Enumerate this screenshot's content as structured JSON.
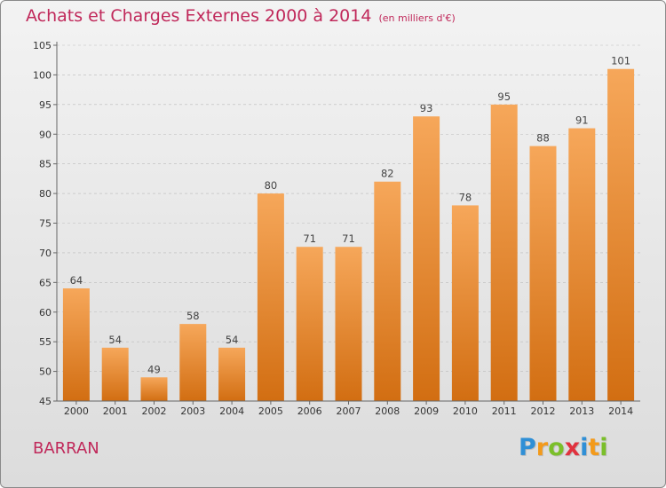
{
  "title": "Achats et Charges Externes 2000 à 2014",
  "subtitle": "(en milliers d'€)",
  "place": "BARRAN",
  "logo": [
    "P",
    "r",
    "o",
    "x",
    "i",
    "t",
    "i"
  ],
  "colors": {
    "title": "#c0285a",
    "bar_top": "#f6a75a",
    "bar_bottom": "#d26e12",
    "grid": "#bbbbbb",
    "logo": [
      "#2f8fd6",
      "#f39a1a",
      "#7bbf2a",
      "#e0323e",
      "#2f8fd6",
      "#f39a1a",
      "#7bbf2a"
    ]
  },
  "chart_data": {
    "type": "bar",
    "categories": [
      "2000",
      "2001",
      "2002",
      "2003",
      "2004",
      "2005",
      "2006",
      "2007",
      "2008",
      "2009",
      "2010",
      "2011",
      "2012",
      "2013",
      "2014"
    ],
    "values": [
      64,
      54,
      49,
      58,
      54,
      80,
      71,
      71,
      82,
      93,
      78,
      95,
      88,
      91,
      101
    ],
    "ylim": [
      45,
      105
    ],
    "yticks": [
      45,
      50,
      55,
      60,
      65,
      70,
      75,
      80,
      85,
      90,
      95,
      100,
      105
    ],
    "grid": true
  }
}
